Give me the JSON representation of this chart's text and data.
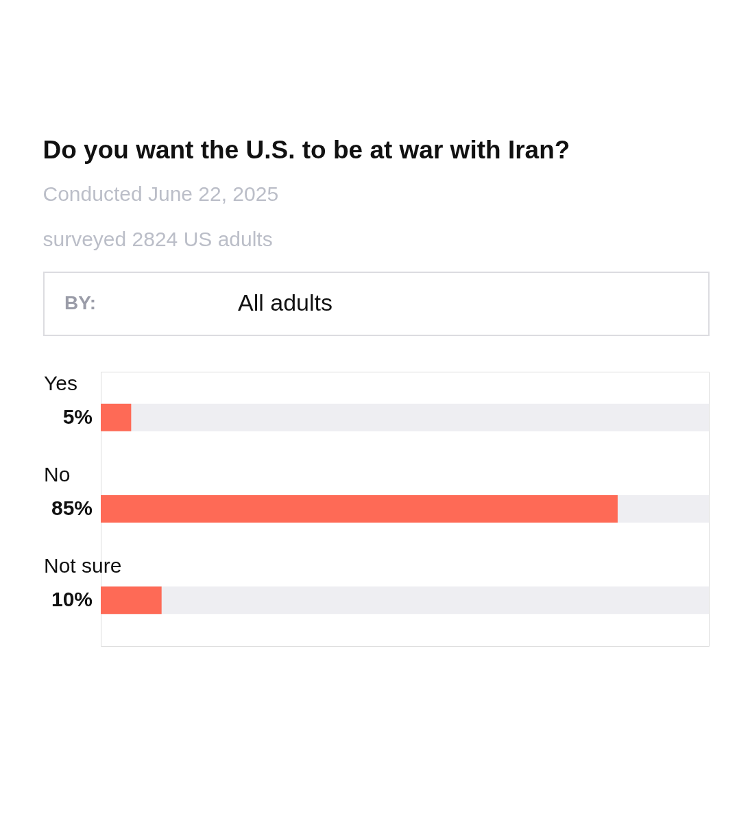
{
  "chart_data": {
    "type": "bar",
    "orientation": "horizontal",
    "title": "Do you want the U.S. to be at war with Iran?",
    "subtitle": "Conducted June 22, 2025",
    "annotations": [
      "surveyed 2824 US adults",
      "BY:",
      "All adults"
    ],
    "categories": [
      "Yes",
      "No",
      "Not sure"
    ],
    "values": [
      5,
      85,
      10
    ],
    "value_labels": [
      "5%",
      "85%",
      "10%"
    ],
    "color": "#fe6a56",
    "xlim": [
      0,
      100
    ],
    "tick_labels": false
  }
}
